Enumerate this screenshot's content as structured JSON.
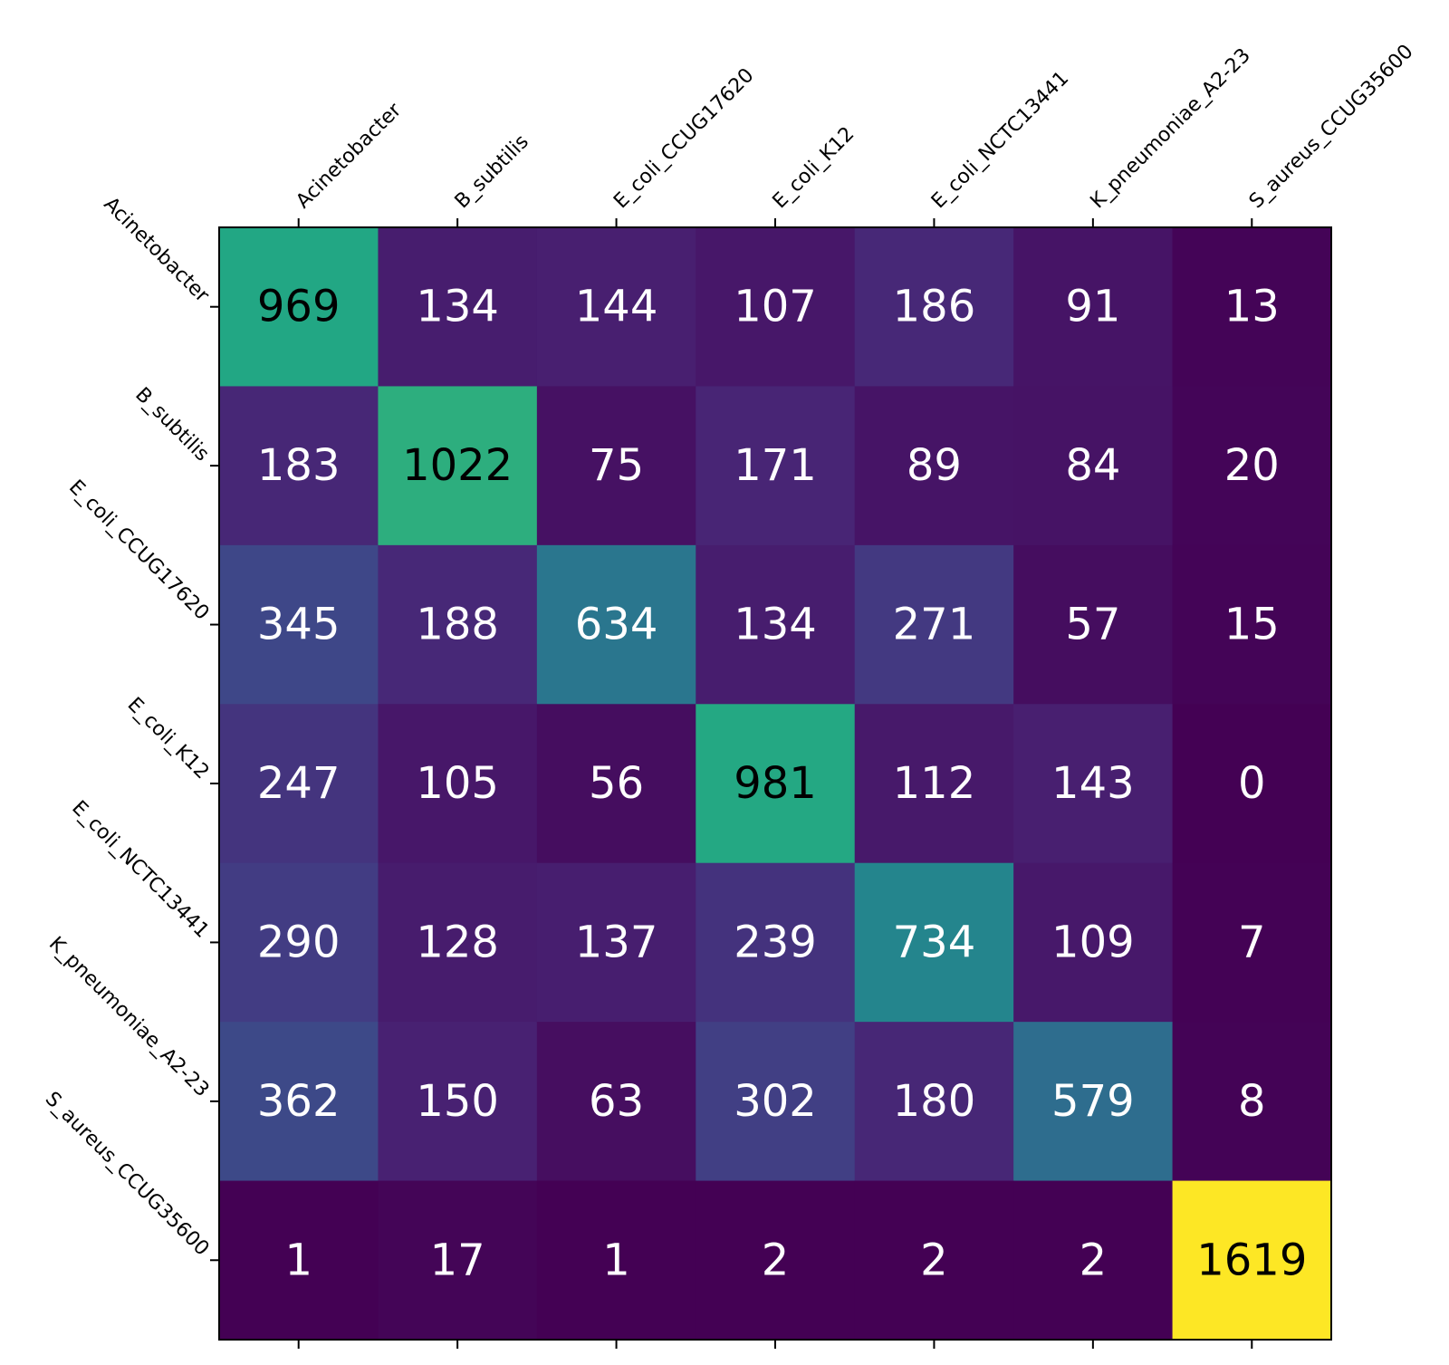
{
  "chart_data": {
    "type": "heatmap",
    "colormap": "viridis",
    "x_labels": [
      "Acinetobacter",
      "B_subtilis",
      "E_coli_CCUG17620",
      "E_coli_K12",
      "E_coli_NCTC13441",
      "K_pneumoniae_A2-23",
      "S_aureus_CCUG35600"
    ],
    "y_labels": [
      "Acinetobacter",
      "B_subtilis",
      "E_coli_CCUG17620",
      "E_coli_K12",
      "E_coli_NCTC13441",
      "K_pneumoniae_A2-23",
      "S_aureus_CCUG35600"
    ],
    "values": [
      [
        969,
        134,
        144,
        107,
        186,
        91,
        13
      ],
      [
        183,
        1022,
        75,
        171,
        89,
        84,
        20
      ],
      [
        345,
        188,
        634,
        134,
        271,
        57,
        15
      ],
      [
        247,
        105,
        56,
        981,
        112,
        143,
        0
      ],
      [
        290,
        128,
        137,
        239,
        734,
        109,
        7
      ],
      [
        362,
        150,
        63,
        302,
        180,
        579,
        8
      ],
      [
        1,
        17,
        1,
        2,
        2,
        2,
        1619
      ]
    ],
    "vmin": 0,
    "vmax": 1619,
    "x_tick_position": "top",
    "x_tick_rotation": 45,
    "y_tick_rotation": -45
  }
}
